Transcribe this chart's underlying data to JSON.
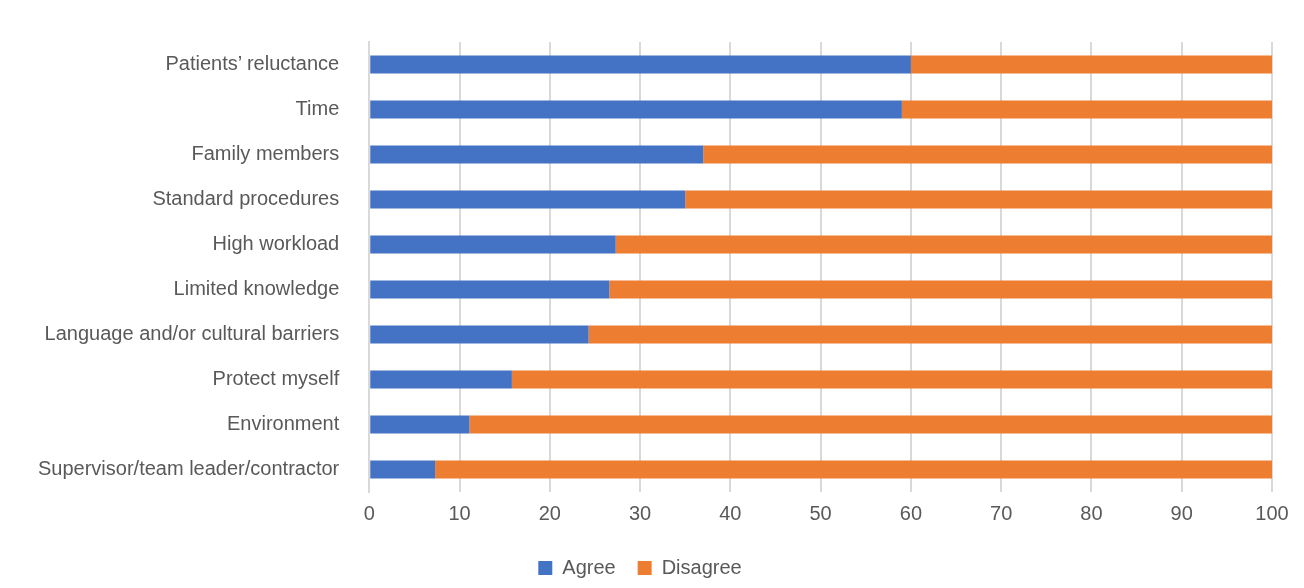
{
  "chart_data": {
    "type": "bar",
    "orientation": "horizontal",
    "stacked": true,
    "categories": [
      "Patients’ reluctance",
      "Time",
      "Family members",
      "Standard procedures",
      "High workload",
      "Limited knowledge",
      "Language and/or cultural barriers",
      "Protect myself",
      "Environment",
      "Supervisor/team leader/contractor"
    ],
    "series": [
      {
        "name": "Agree",
        "color": "#4472c4",
        "values": [
          60,
          59,
          37,
          35,
          27.3,
          26.6,
          24.3,
          15.8,
          11.1,
          7.3
        ]
      },
      {
        "name": "Disagree",
        "color": "#ed7d31",
        "values": [
          40,
          41,
          63,
          65,
          72.7,
          73.4,
          75.7,
          84.2,
          88.9,
          92.7
        ]
      }
    ],
    "xlim": [
      0,
      100
    ],
    "xticks": [
      0,
      10,
      20,
      30,
      40,
      50,
      60,
      70,
      80,
      90,
      100
    ],
    "grid": "x",
    "legend": "bottom"
  }
}
